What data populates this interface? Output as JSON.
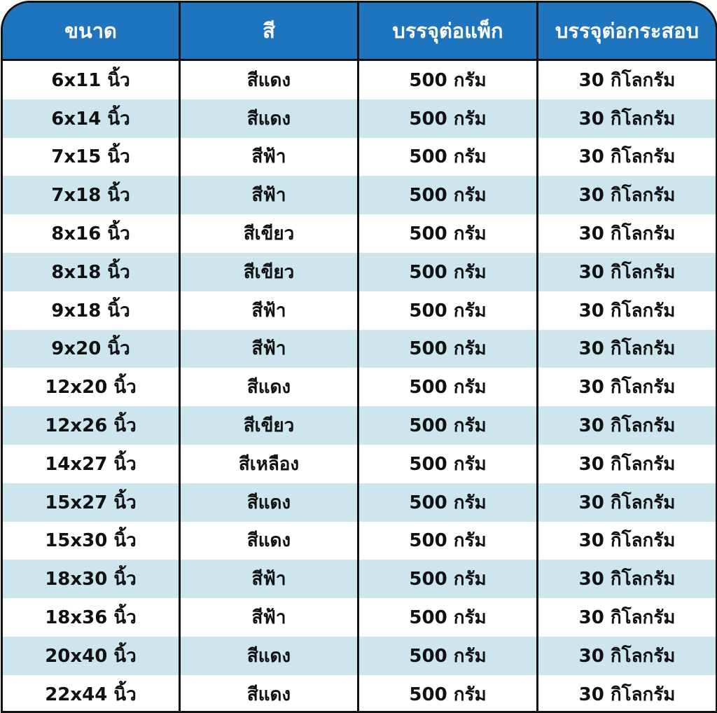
{
  "header": [
    "ขนาด",
    "สี",
    "บรรจุต่อแพ็ก",
    "บรรจุต่อกระสอบ"
  ],
  "rows": [
    [
      "6x11 นิ้ว",
      "สีแดง",
      "500 กรัม",
      "30 กิโลกรัม"
    ],
    [
      "6x14 นิ้ว",
      "สีแดง",
      "500 กรัม",
      "30 กิโลกรัม"
    ],
    [
      "7x15 นิ้ว",
      "สีฟ้า",
      "500 กรัม",
      "30 กิโลกรัม"
    ],
    [
      "7x18 นิ้ว",
      "สีฟ้า",
      "500 กรัม",
      "30 กิโลกรัม"
    ],
    [
      "8x16 นิ้ว",
      "สีเขียว",
      "500 กรัม",
      "30 กิโลกรัม"
    ],
    [
      "8x18 นิ้ว",
      "สีเขียว",
      "500 กรัม",
      "30 กิโลกรัม"
    ],
    [
      "9x18 นิ้ว",
      "สีฟ้า",
      "500 กรัม",
      "30 กิโลกรัม"
    ],
    [
      "9x20 นิ้ว",
      "สีฟ้า",
      "500 กรัม",
      "30 กิโลกรัม"
    ],
    [
      "12x20 นิ้ว",
      "สีแดง",
      "500 กรัม",
      "30 กิโลกรัม"
    ],
    [
      "12x26 นิ้ว",
      "สีเขียว",
      "500 กรัม",
      "30 กิโลกรัม"
    ],
    [
      "14x27 นิ้ว",
      "สีเหลือง",
      "500 กรัม",
      "30 กิโลกรัม"
    ],
    [
      "15x27 นิ้ว",
      "สีแดง",
      "500 กรัม",
      "30 กิโลกรัม"
    ],
    [
      "15x30 นิ้ว",
      "สีแดง",
      "500 กรัม",
      "30 กิโลกรัม"
    ],
    [
      "18x30 นิ้ว",
      "สีฟ้า",
      "500 กรัม",
      "30 กิโลกรัม"
    ],
    [
      "18x36 นิ้ว",
      "สีฟ้า",
      "500 กรัม",
      "30 กิโลกรัม"
    ],
    [
      "20x40 นิ้ว",
      "สีแดง",
      "500 กรัม",
      "30 กิโลกรัม"
    ],
    [
      "22x44 นิ้ว",
      "สีแดง",
      "500 กรัม",
      "30 กิโลกรัม"
    ]
  ],
  "colors": {
    "header_bg": "#1e74bd",
    "stripe_bg": "#cde5ec",
    "border": "#111111"
  }
}
